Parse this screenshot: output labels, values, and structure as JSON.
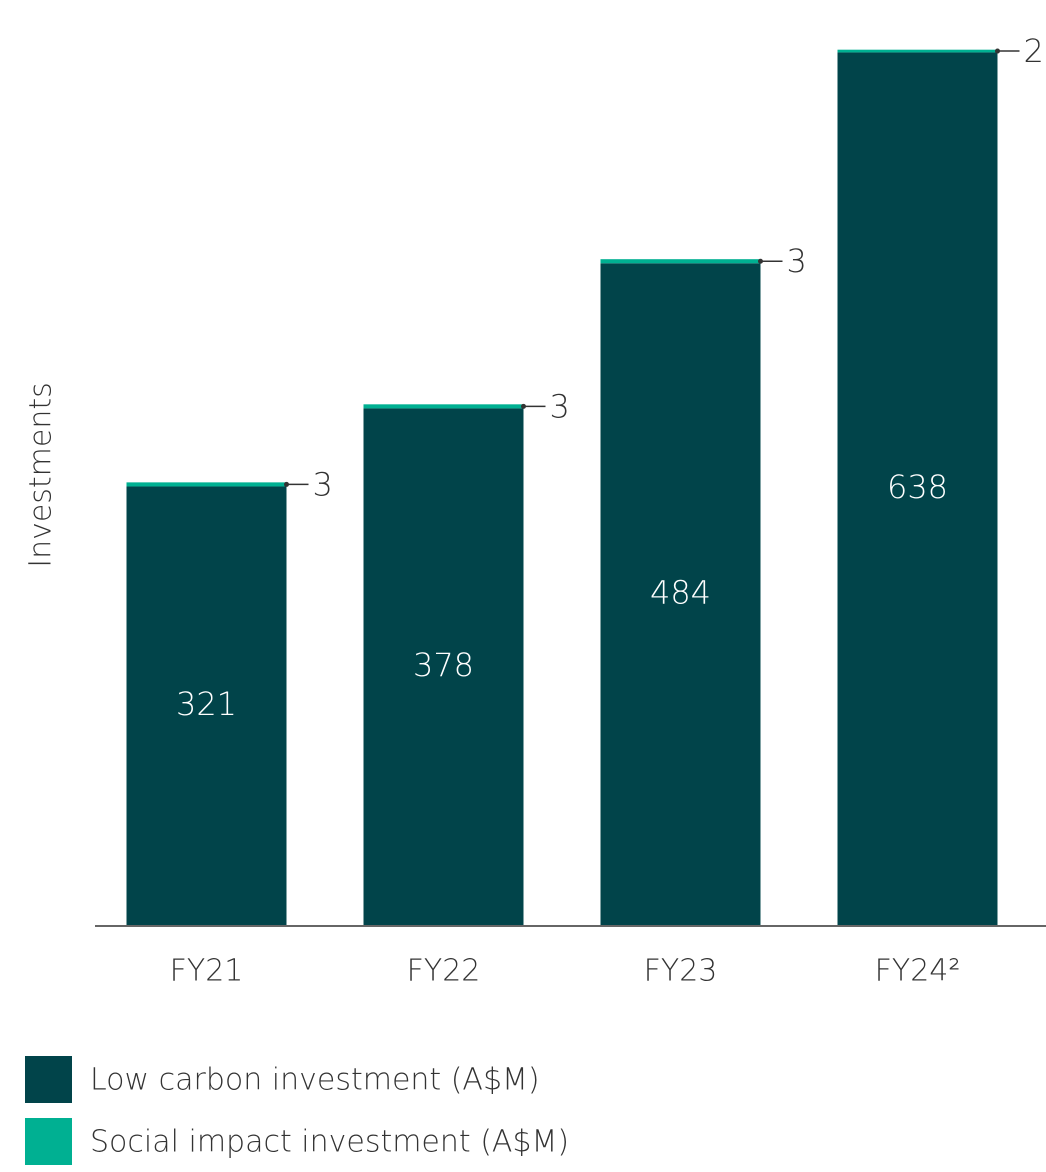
{
  "chart_data": {
    "type": "stacked_bar",
    "y_label": "Investments",
    "categories": [
      "FY21",
      "FY22",
      "FY23",
      "FY24²"
    ],
    "series": [
      {
        "name": "Low carbon investment (A$M)",
        "color": "#01444a",
        "values": [
          321,
          378,
          484,
          638
        ]
      },
      {
        "name": "Social impact investment (A$M)",
        "color": "#00b092",
        "values": [
          3,
          3,
          3,
          2
        ]
      }
    ],
    "ylim": [
      0,
      650
    ]
  }
}
